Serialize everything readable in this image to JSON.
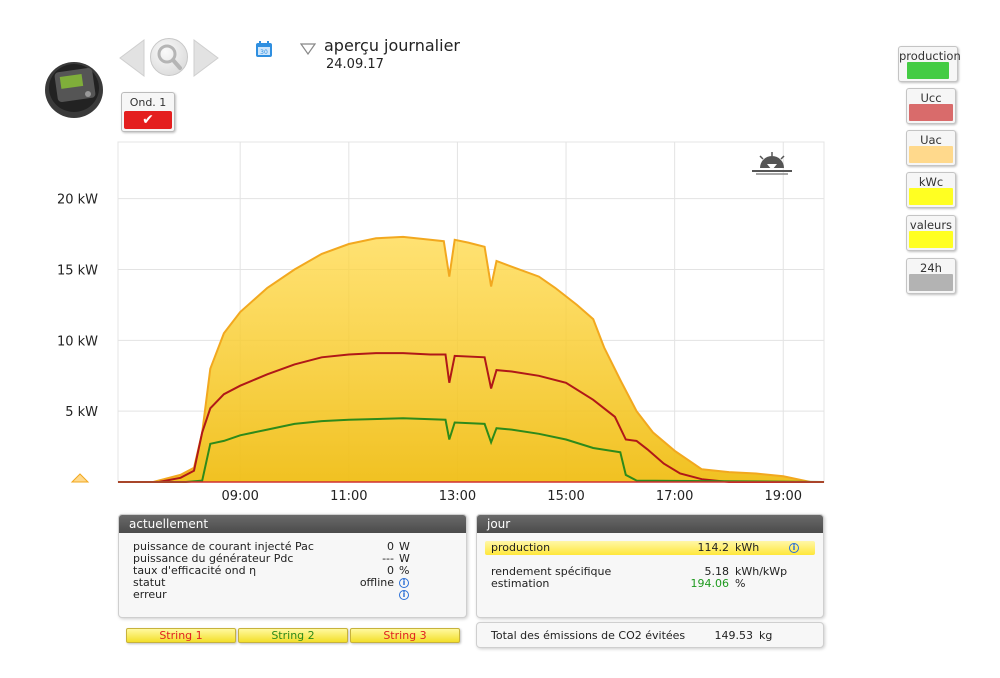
{
  "header": {
    "view_title": "aperçu journalier",
    "date": "24.09.17",
    "inverter_button": "Ond. 1"
  },
  "icons": [
    "device-icon",
    "arrow-left-icon",
    "magnifier-icon",
    "arrow-right-icon",
    "calendar-icon",
    "dropdown-arrow-icon",
    "check-icon",
    "sunset-icon",
    "info-icon"
  ],
  "legend_buttons": [
    {
      "label": "production",
      "color": "#44cc44"
    },
    {
      "label": "Ucc",
      "color": "#d96b6b"
    },
    {
      "label": "Uac",
      "color": "#ffd98c"
    },
    {
      "label": "kWc",
      "color": "#ffff22"
    },
    {
      "label": "valeurs",
      "color": "#ffff22"
    },
    {
      "label": "24h",
      "color": "#b3b3b3"
    }
  ],
  "chart_data": {
    "type": "area",
    "y_ticks": [
      "5 kW",
      "10 kW",
      "15 kW",
      "20 kW"
    ],
    "x_ticks": [
      "09:00",
      "11:00",
      "13:00",
      "15:00",
      "17:00",
      "19:00"
    ],
    "xlim": [
      6.75,
      19.75
    ],
    "ylim": [
      0,
      24
    ],
    "grid": true,
    "colors": {
      "envelope": "#f2a81f",
      "fill": "#ffd844",
      "fill_bottom": "#f0be16",
      "ucc": "#b01818",
      "production": "#2e8a1a"
    },
    "series": [
      {
        "values": [
          [
            6.75,
            0
          ],
          [
            7.4,
            0
          ],
          [
            7.9,
            0.5
          ],
          [
            8.15,
            1
          ],
          [
            8.3,
            3.5
          ],
          [
            8.45,
            8
          ],
          [
            8.7,
            10.5
          ],
          [
            9.0,
            12
          ],
          [
            9.5,
            13.7
          ],
          [
            10.0,
            15
          ],
          [
            10.5,
            16.1
          ],
          [
            11.0,
            16.8
          ],
          [
            11.5,
            17.2
          ],
          [
            12.0,
            17.3
          ],
          [
            12.5,
            17.1
          ],
          [
            12.75,
            17.0
          ],
          [
            12.85,
            14.5
          ],
          [
            12.95,
            17.1
          ],
          [
            13.2,
            16.9
          ],
          [
            13.5,
            16.6
          ],
          [
            13.62,
            13.8
          ],
          [
            13.72,
            15.6
          ],
          [
            14.0,
            15.2
          ],
          [
            14.5,
            14.5
          ],
          [
            14.8,
            13.7
          ],
          [
            15.2,
            12.5
          ],
          [
            15.5,
            11.5
          ],
          [
            15.7,
            9.5
          ],
          [
            16.0,
            7.2
          ],
          [
            16.3,
            5.0
          ],
          [
            16.6,
            3.5
          ],
          [
            17.0,
            2.2
          ],
          [
            17.5,
            0.9
          ],
          [
            18.0,
            0.7
          ],
          [
            18.5,
            0.6
          ],
          [
            19.0,
            0.4
          ],
          [
            19.5,
            0
          ],
          [
            19.75,
            0
          ]
        ]
      },
      {
        "values": [
          [
            6.75,
            0
          ],
          [
            7.5,
            0
          ],
          [
            7.9,
            0.3
          ],
          [
            8.15,
            0.8
          ],
          [
            8.3,
            3.5
          ],
          [
            8.45,
            5.2
          ],
          [
            8.7,
            6.2
          ],
          [
            9.0,
            6.8
          ],
          [
            9.5,
            7.6
          ],
          [
            10.0,
            8.3
          ],
          [
            10.5,
            8.8
          ],
          [
            11.0,
            9.0
          ],
          [
            11.5,
            9.1
          ],
          [
            12.0,
            9.1
          ],
          [
            12.5,
            9.0
          ],
          [
            12.78,
            9.0
          ],
          [
            12.85,
            7.0
          ],
          [
            12.95,
            8.9
          ],
          [
            13.5,
            8.8
          ],
          [
            13.62,
            6.6
          ],
          [
            13.72,
            7.9
          ],
          [
            14.0,
            7.8
          ],
          [
            14.5,
            7.5
          ],
          [
            15.0,
            7.0
          ],
          [
            15.5,
            5.8
          ],
          [
            15.9,
            4.6
          ],
          [
            16.1,
            3.0
          ],
          [
            16.3,
            2.9
          ],
          [
            16.5,
            2.3
          ],
          [
            16.8,
            1.3
          ],
          [
            17.1,
            0.6
          ],
          [
            17.5,
            0.2
          ],
          [
            18.0,
            0
          ],
          [
            19.75,
            0
          ]
        ]
      },
      {
        "values": [
          [
            6.75,
            0
          ],
          [
            8.0,
            0
          ],
          [
            8.3,
            0.1
          ],
          [
            8.45,
            2.7
          ],
          [
            8.7,
            2.9
          ],
          [
            9.0,
            3.3
          ],
          [
            9.5,
            3.7
          ],
          [
            10.0,
            4.1
          ],
          [
            10.5,
            4.3
          ],
          [
            11.0,
            4.4
          ],
          [
            12.0,
            4.5
          ],
          [
            12.78,
            4.4
          ],
          [
            12.85,
            3.0
          ],
          [
            12.95,
            4.2
          ],
          [
            13.5,
            4.1
          ],
          [
            13.62,
            2.8
          ],
          [
            13.72,
            3.8
          ],
          [
            14.0,
            3.7
          ],
          [
            14.5,
            3.4
          ],
          [
            15.0,
            3.0
          ],
          [
            15.5,
            2.4
          ],
          [
            16.0,
            2.1
          ],
          [
            16.1,
            0.5
          ],
          [
            16.3,
            0.1
          ],
          [
            19.75,
            0
          ]
        ]
      }
    ]
  },
  "panel_now": {
    "title": "actuellement",
    "rows": [
      {
        "label": "puissance de courant injecté Pac",
        "value": "0",
        "unit": "W"
      },
      {
        "label": "puissance du générateur Pdc",
        "value": "---",
        "unit": "W"
      },
      {
        "label": "taux d'efficacité ond η",
        "value": "0",
        "unit": "%"
      },
      {
        "label": "statut",
        "value": "offline"
      },
      {
        "label": "erreur",
        "value": ""
      }
    ]
  },
  "panel_day": {
    "title": "jour",
    "production_label": "production",
    "production_value": "114.2",
    "production_unit": "kWh",
    "yield_label": "rendement spécifique",
    "yield_value": "5.18",
    "yield_unit": "kWh/kWp",
    "estimate_label": "estimation",
    "estimate_value": "194.06",
    "estimate_unit": "%",
    "estimate_color": "#1e9a1e"
  },
  "co2": {
    "label": "Total des émissions de CO2 évitées",
    "value": "149.53",
    "unit": "kg"
  },
  "strings": [
    {
      "label": "String 1",
      "color": "#e02020"
    },
    {
      "label": "String 2",
      "color": "#2e8a1a"
    },
    {
      "label": "String 3",
      "color": "#e02020"
    }
  ]
}
